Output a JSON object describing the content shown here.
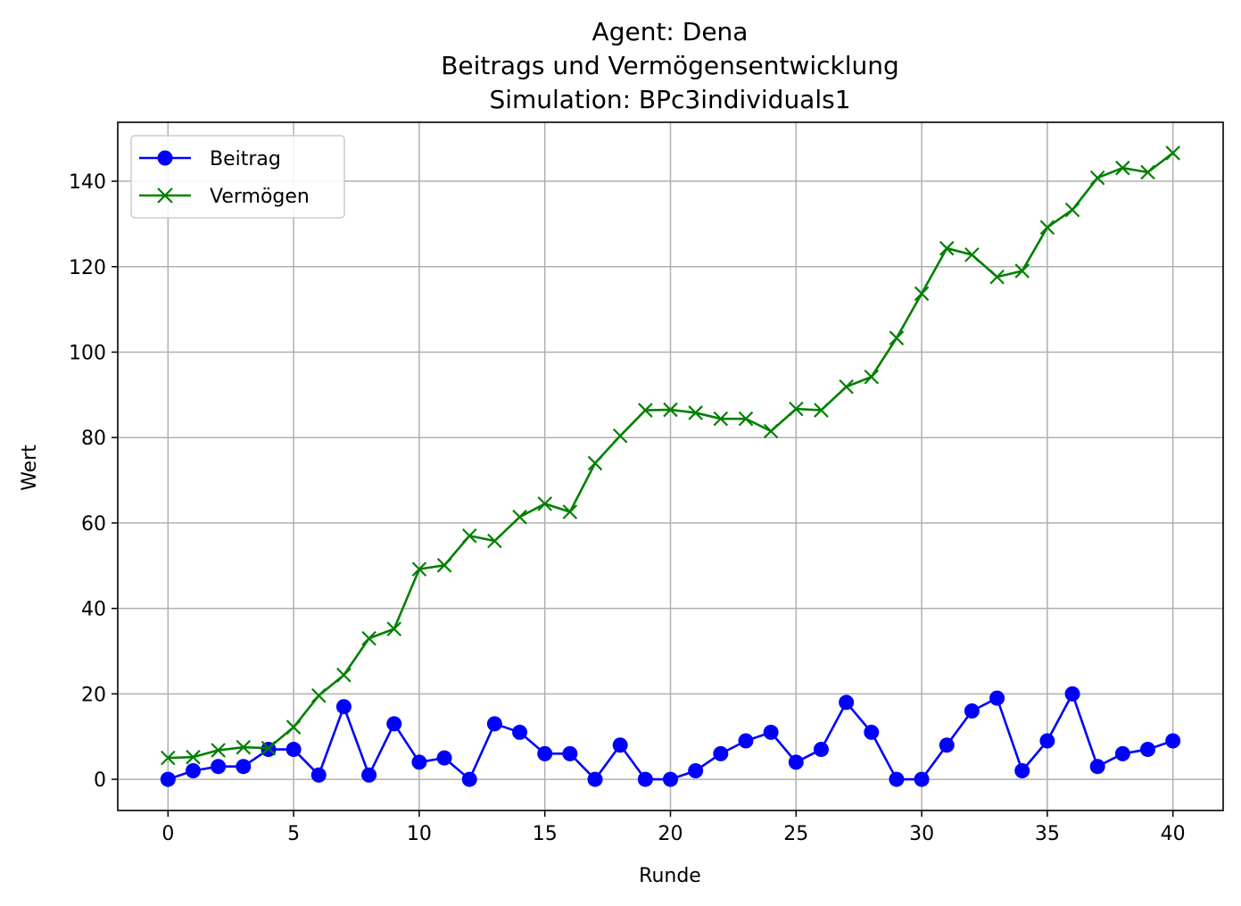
{
  "chart_data": {
    "type": "line",
    "title_lines": [
      "Agent: Dena",
      "Beitrags und Vermögensentwicklung",
      "Simulation: BPc3individuals1"
    ],
    "xlabel": "Runde",
    "ylabel": "Wert",
    "xlim": [
      -2,
      42
    ],
    "ylim": [
      -7.3,
      153.8
    ],
    "xticks": [
      0,
      5,
      10,
      15,
      20,
      25,
      30,
      35,
      40
    ],
    "yticks": [
      0,
      20,
      40,
      60,
      80,
      100,
      120,
      140
    ],
    "grid": true,
    "legend_position": "upper-left",
    "x": [
      0,
      1,
      2,
      3,
      4,
      5,
      6,
      7,
      8,
      9,
      10,
      11,
      12,
      13,
      14,
      15,
      16,
      17,
      18,
      19,
      20,
      21,
      22,
      23,
      24,
      25,
      26,
      27,
      28,
      29,
      30,
      31,
      32,
      33,
      34,
      35,
      36,
      37,
      38,
      39,
      40
    ],
    "series": [
      {
        "name": "Beitrag",
        "color": "#0000ff",
        "marker": "circle",
        "values": [
          0,
          2,
          3,
          3,
          7,
          7,
          1,
          17,
          1,
          13,
          4,
          5,
          0,
          13,
          11,
          6,
          6,
          0,
          8,
          0,
          0,
          2,
          6,
          9,
          11,
          4,
          7,
          18,
          11,
          0,
          0,
          8,
          16,
          19,
          2,
          9,
          20,
          3,
          6,
          7,
          9
        ]
      },
      {
        "name": "Vermögen",
        "color": "#008000",
        "marker": "x",
        "values": [
          5,
          5.2,
          6.8,
          7.5,
          7.3,
          12.2,
          19.6,
          24.4,
          33,
          35.2,
          49.2,
          50.1,
          57,
          55.8,
          61.4,
          64.5,
          62.6,
          74,
          80.4,
          86.4,
          86.5,
          85.8,
          84.4,
          84.4,
          81.5,
          86.7,
          86.4,
          91.9,
          94.2,
          103.3,
          113.7,
          124.3,
          122.8,
          117.6,
          119,
          129.2,
          133.3,
          140.8,
          143.1,
          142.1,
          146.6
        ]
      }
    ]
  }
}
